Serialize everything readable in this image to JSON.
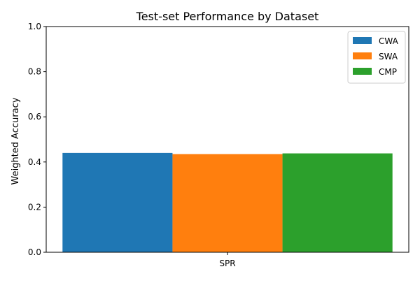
{
  "chart_data": {
    "type": "bar",
    "title": "Test-set Performance by Dataset",
    "xlabel": "",
    "ylabel": "Weighted Accuracy",
    "categories": [
      "SPR"
    ],
    "series": [
      {
        "name": "CWA",
        "values": [
          0.44
        ],
        "color": "#1f77b4"
      },
      {
        "name": "SWA",
        "values": [
          0.435
        ],
        "color": "#ff7f0e"
      },
      {
        "name": "CMP",
        "values": [
          0.438
        ],
        "color": "#2ca02c"
      }
    ],
    "ylim": [
      0,
      1.0
    ],
    "yticks": [
      "0.0",
      "0.2",
      "0.4",
      "0.6",
      "0.8",
      "1.0"
    ],
    "grid": false,
    "legend_position": "top-right"
  }
}
